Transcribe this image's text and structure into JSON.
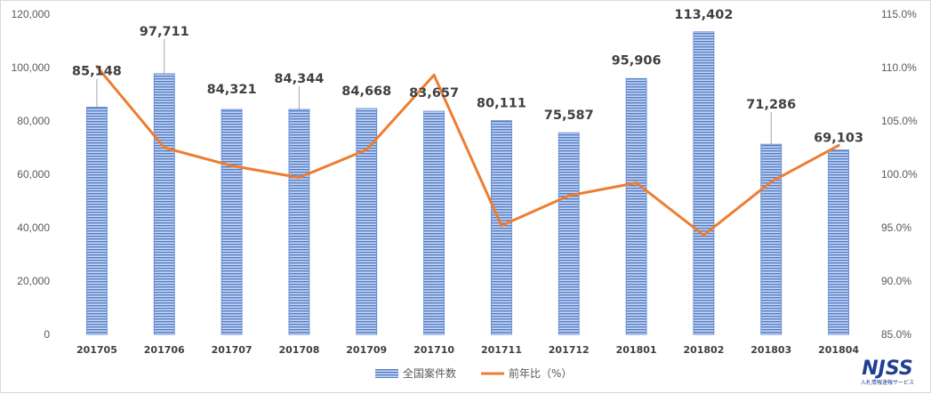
{
  "chart_data": {
    "type": "bar+line",
    "categories": [
      "201705",
      "201706",
      "201707",
      "201708",
      "201709",
      "201710",
      "201711",
      "201712",
      "201801",
      "201802",
      "201803",
      "201804"
    ],
    "series": [
      {
        "name": "全国案件数",
        "type": "bar",
        "axis": "left",
        "values": [
          85148,
          97711,
          84321,
          84344,
          84668,
          83657,
          80111,
          75587,
          95906,
          113402,
          71286,
          69103
        ],
        "labels": [
          "85,148",
          "97,711",
          "84,321",
          "84,344",
          "84,668",
          "83,657",
          "80,111",
          "75,587",
          "95,906",
          "113,402",
          "71,286",
          "69,103"
        ]
      },
      {
        "name": "前年比（%）",
        "type": "line",
        "axis": "right",
        "values": [
          110.1,
          102.5,
          100.8,
          99.7,
          102.3,
          109.3,
          95.2,
          98.0,
          99.2,
          94.3,
          99.3,
          102.7
        ]
      }
    ],
    "y_left": {
      "min": 0,
      "max": 120000,
      "step": 20000,
      "ticks": [
        "0",
        "20,000",
        "40,000",
        "60,000",
        "80,000",
        "100,000",
        "120,000"
      ]
    },
    "y_right": {
      "min": 85,
      "max": 115,
      "step": 5,
      "ticks": [
        "85.0%",
        "90.0%",
        "95.0%",
        "100.0%",
        "105.0%",
        "110.0%",
        "115.0%"
      ]
    },
    "grid": false,
    "legend_position": "bottom",
    "colors": {
      "bar_fill": "#8faadc",
      "bar_stripe": "#4472c4",
      "line": "#ed7d31",
      "leader": "#a6a6a6"
    }
  },
  "logo": {
    "text": "NJSS",
    "subtext": "入札情報速報サービス"
  }
}
